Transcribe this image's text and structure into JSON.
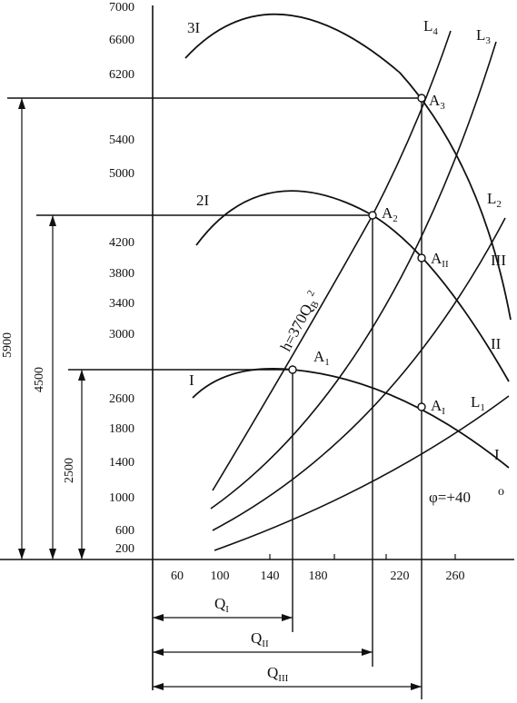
{
  "y_ticks": [
    "7000",
    "6600",
    "6200",
    "5400",
    "5000",
    "4200",
    "3800",
    "3400",
    "3000",
    "2600",
    "1800",
    "1400",
    "1000",
    "600",
    "200"
  ],
  "x_ticks": [
    "60",
    "100",
    "140",
    "180",
    "220",
    "260"
  ],
  "curve_labels": {
    "c3I": "3I",
    "c2I": "2I",
    "c1I": "I",
    "cIII": "III",
    "cII": "II",
    "cI": "I",
    "L4": "L",
    "L4sub": "4",
    "L3": "L",
    "L3sub": "3",
    "L2": "L",
    "L2sub": "2",
    "L1": "L",
    "L1sub": "1"
  },
  "points": {
    "A3": "A",
    "A3sub": "3",
    "A2": "A",
    "A2sub": "2",
    "A1": "A",
    "A1sub": "1",
    "AII": "A",
    "AIIsub": "II",
    "AI": "A",
    "AIsub": "I"
  },
  "system_curve_label": "h=370Q",
  "system_curve_sub": "B",
  "system_curve_sup": "2",
  "heights": [
    "5900",
    "4500",
    "2500"
  ],
  "flows": {
    "QI": "Q",
    "QIsub": "I",
    "QII": "Q",
    "QIIsub": "II",
    "QIII": "Q",
    "QIIIsub": "III"
  },
  "angle_label": "φ=+40",
  "angle_circle": "o"
}
